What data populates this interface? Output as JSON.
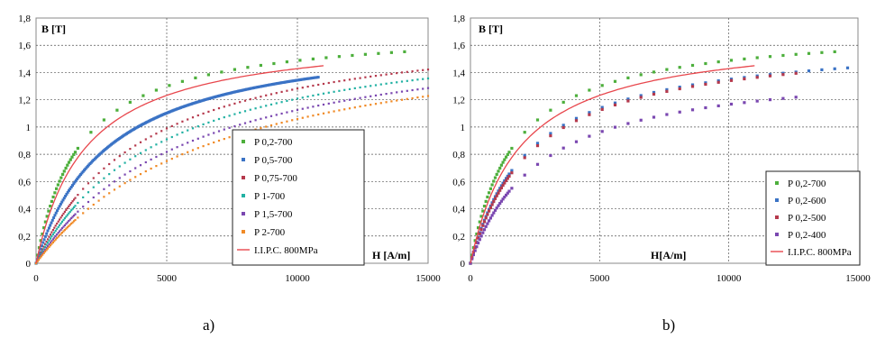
{
  "figure": {
    "caption_a": "a)",
    "caption_b": "b)"
  },
  "chart_data": [
    {
      "type": "scatter",
      "panel": "a",
      "xlabel": "H [A/m]",
      "ylabel": "B [T]",
      "xlim": [
        0,
        15000
      ],
      "ylim": [
        0,
        1.8
      ],
      "xticks": [
        "0",
        "5000",
        "10000",
        "15000"
      ],
      "yticks": [
        "0",
        "0,2",
        "0,4",
        "0,6",
        "0,8",
        "1",
        "1,2",
        "1,4",
        "1,6",
        "1,8"
      ],
      "grid": true,
      "legend_position": "center-right",
      "series": [
        {
          "name": "P 0,2-700",
          "color": "#4daf3c",
          "mode": "sparse-points",
          "bsat": 1.74,
          "h0": 1700,
          "xmax": 14500
        },
        {
          "name": "P 0,5-700",
          "color": "#3b73c5",
          "mode": "dense-points",
          "bsat": 1.72,
          "h0": 2800,
          "xmax": 10800
        },
        {
          "name": "P 0,75-700",
          "color": "#b5394c",
          "mode": "dotted",
          "bsat": 1.82,
          "h0": 4200,
          "xmax": 15000
        },
        {
          "name": "P 1-700",
          "color": "#22b1a3",
          "mode": "dotted",
          "bsat": 1.8,
          "h0": 4900,
          "xmax": 15000
        },
        {
          "name": "P 1,5-700",
          "color": "#7a47b0",
          "mode": "dotted",
          "bsat": 1.8,
          "h0": 6000,
          "xmax": 15000
        },
        {
          "name": "P 2-700",
          "color": "#f08a26",
          "mode": "dotted",
          "bsat": 1.8,
          "h0": 7000,
          "xmax": 15000
        },
        {
          "name": "I.I.P.C. 800MPa",
          "color": "#e8474d",
          "mode": "line",
          "bsat": 1.7,
          "h0": 1900,
          "xmax": 11000
        }
      ]
    },
    {
      "type": "scatter",
      "panel": "b",
      "xlabel": "H[A/m]",
      "ylabel": "B [T]",
      "xlim": [
        0,
        15000
      ],
      "ylim": [
        0,
        1.8
      ],
      "xticks": [
        "0",
        "5000",
        "10000",
        "15000"
      ],
      "yticks": [
        "0",
        "0,2",
        "0,4",
        "0,6",
        "0,8",
        "1",
        "1,2",
        "1,4",
        "1,6",
        "1,8"
      ],
      "grid": true,
      "legend_position": "bottom-right",
      "series": [
        {
          "name": "P 0,2-700",
          "color": "#4daf3c",
          "mode": "sparse-points",
          "bsat": 1.74,
          "h0": 1700,
          "xmax": 14500
        },
        {
          "name": "P 0,2-600",
          "color": "#3b73c5",
          "mode": "sparse-points",
          "bsat": 1.66,
          "h0": 2300,
          "xmax": 14600
        },
        {
          "name": "P 0,2-500",
          "color": "#b5394c",
          "mode": "sparse-points",
          "bsat": 1.66,
          "h0": 2400,
          "xmax": 13000
        },
        {
          "name": "P 0,2-400",
          "color": "#7a47b0",
          "mode": "sparse-points",
          "bsat": 1.48,
          "h0": 2700,
          "xmax": 13000
        },
        {
          "name": "I.I.P.C. 800MPa",
          "color": "#e8474d",
          "mode": "line",
          "bsat": 1.7,
          "h0": 1900,
          "xmax": 11000
        }
      ]
    }
  ]
}
